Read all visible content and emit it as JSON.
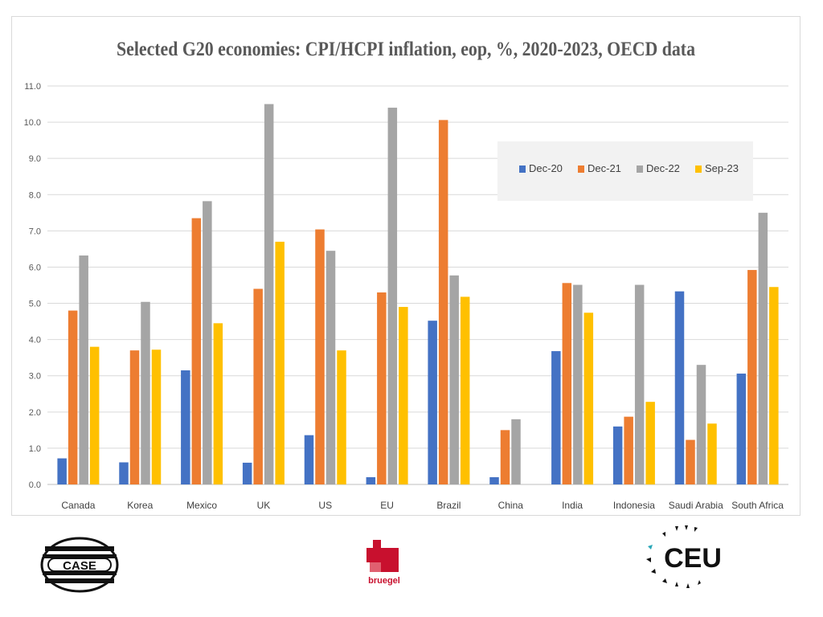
{
  "chart_data": {
    "type": "bar",
    "title": "Selected G20 economies: CPI/HCPI inflation, eop, %, 2020-2023, OECD data",
    "categories": [
      "Canada",
      "Korea",
      "Mexico",
      "UK",
      "US",
      "EU",
      "Brazil",
      "China",
      "India",
      "Indonesia",
      "Saudi Arabia",
      "South Africa"
    ],
    "series": [
      {
        "name": "Dec-20",
        "color": "#4472C4",
        "values": [
          0.72,
          0.61,
          3.15,
          0.6,
          1.36,
          0.2,
          4.52,
          0.2,
          3.68,
          1.6,
          5.33,
          3.06
        ]
      },
      {
        "name": "Dec-21",
        "color": "#ED7D31",
        "values": [
          4.8,
          3.7,
          7.35,
          5.4,
          7.04,
          5.3,
          10.06,
          1.5,
          5.56,
          1.87,
          1.23,
          5.92
        ]
      },
      {
        "name": "Dec-22",
        "color": "#A5A5A5",
        "values": [
          6.32,
          5.04,
          7.82,
          10.5,
          6.45,
          10.4,
          5.77,
          1.8,
          5.51,
          5.51,
          3.3,
          7.5
        ]
      },
      {
        "name": "Sep-23",
        "color": "#FFC000",
        "values": [
          3.8,
          3.72,
          4.45,
          6.7,
          3.7,
          4.9,
          5.18,
          0,
          4.74,
          2.28,
          1.68,
          5.45
        ]
      }
    ],
    "ylim": [
      0,
      11
    ],
    "yticks": [
      "0.0",
      "1.0",
      "2.0",
      "3.0",
      "4.0",
      "5.0",
      "6.0",
      "7.0",
      "8.0",
      "9.0",
      "10.0",
      "11.0"
    ],
    "grid": true,
    "legend_position": "top-right"
  },
  "logos": {
    "case": "CASE",
    "bruegel": "bruegel",
    "ceu": "CEU"
  }
}
